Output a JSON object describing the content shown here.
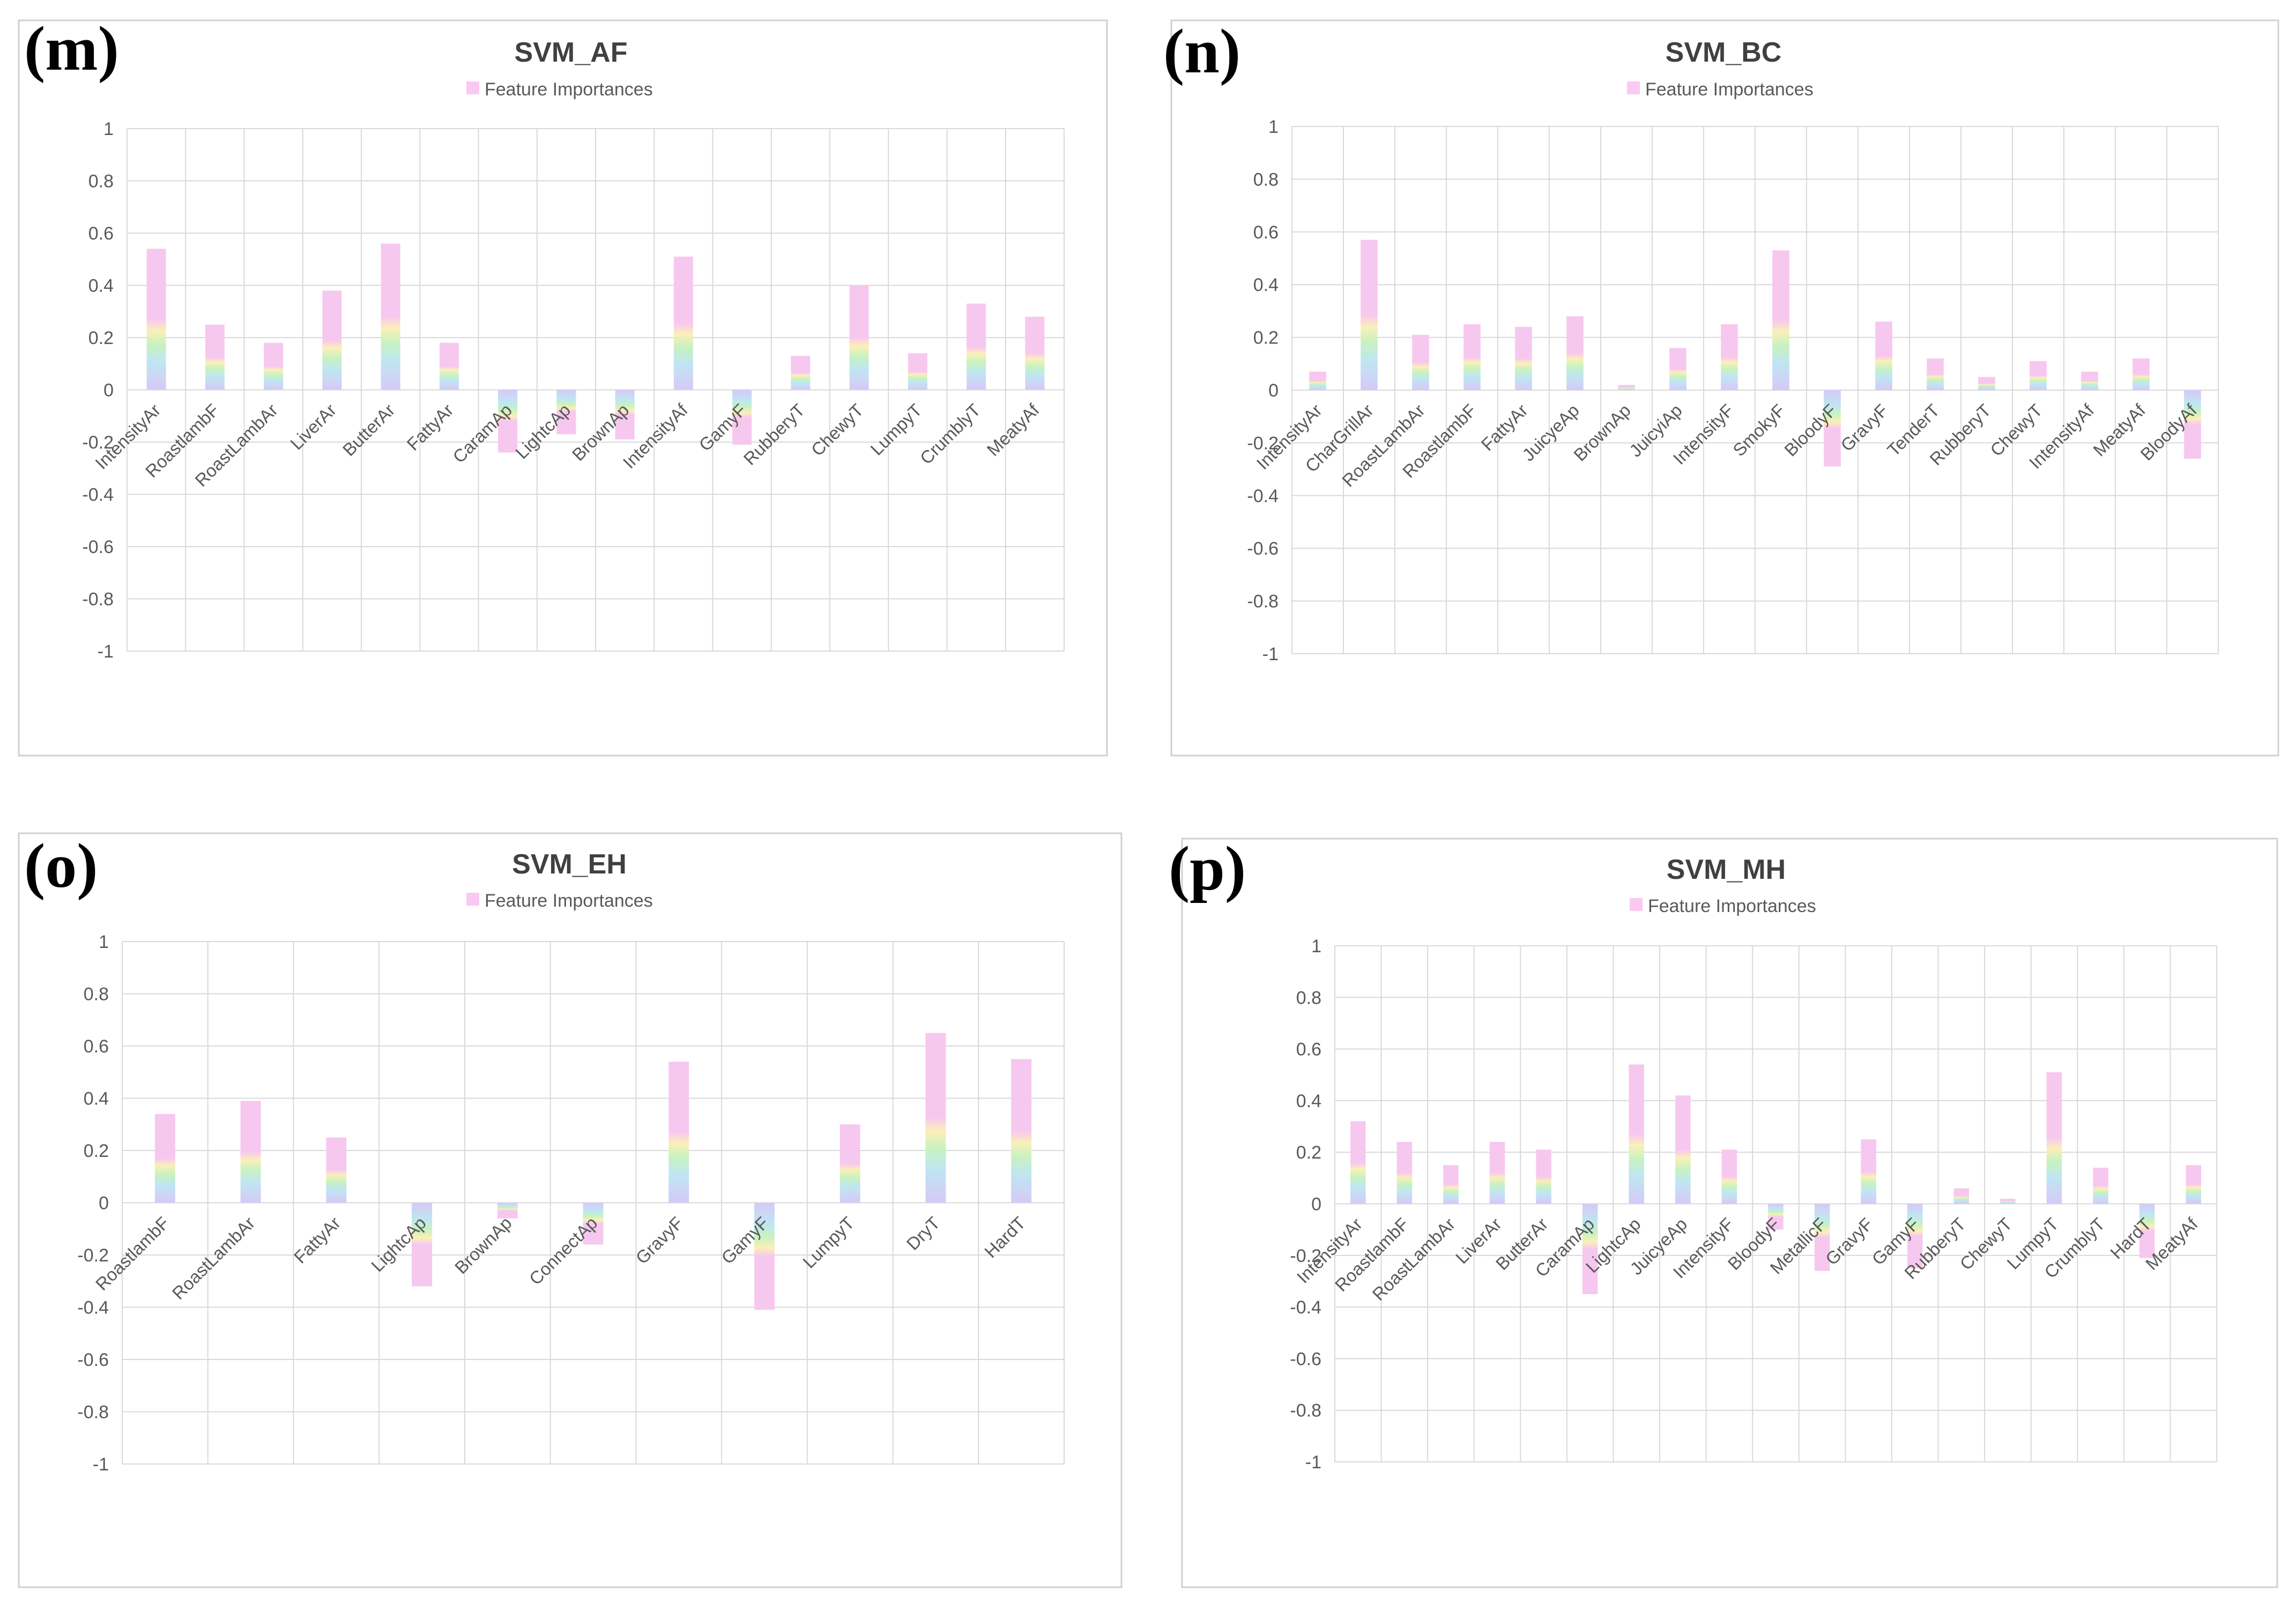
{
  "colors": {
    "bar_top": "#f9c9f1",
    "bar_stops": [
      "#f7c8ef",
      "#fbefb8",
      "#c8f2c0",
      "#bfe6f2",
      "#d6c9f7"
    ],
    "grid": "#d9d9d9",
    "frame": "#d0d0d0",
    "text": "#595959",
    "title": "#404040",
    "letter": "#000000"
  },
  "legend_label": "Feature Importances",
  "chart_data": [
    {
      "panel": "(m)",
      "type": "bar",
      "title": "SVM_AF",
      "legend": "Feature Importances",
      "ylim": [
        -1,
        1
      ],
      "yticks": [
        1,
        0.8,
        0.6,
        0.4,
        0.2,
        0,
        -0.2,
        -0.4,
        -0.6,
        -0.8,
        -1
      ],
      "ytick_labels": [
        "1",
        "0.8",
        "0.6",
        "0.4",
        "0.2",
        "0",
        "-0.2",
        "-0.4",
        "-0.6",
        "-0.8",
        "-1"
      ],
      "categories": [
        "IntensityAr",
        "RoastlambF",
        "RoastLambAr",
        "LiverAr",
        "ButterAr",
        "FattyAr",
        "CaramAp",
        "LightcAp",
        "BrownAp",
        "IntensityAf",
        "GamyF",
        "RubberyT",
        "ChewyT",
        "LumpyT",
        "CrumblyT",
        "MeatyAf"
      ],
      "values": [
        0.54,
        0.25,
        0.18,
        0.38,
        0.56,
        0.18,
        -0.24,
        -0.17,
        -0.19,
        0.51,
        -0.21,
        0.13,
        0.4,
        0.14,
        0.33,
        0.28
      ]
    },
    {
      "panel": "(n)",
      "type": "bar",
      "title": "SVM_BC",
      "legend": "Feature Importances",
      "ylim": [
        -1,
        1
      ],
      "yticks": [
        1,
        0.8,
        0.6,
        0.4,
        0.2,
        0,
        -0.2,
        -0.4,
        -0.6,
        -0.8,
        -1
      ],
      "ytick_labels": [
        "1",
        "0.8",
        "0.6",
        "0.4",
        "0.2",
        "0",
        "-0.2",
        "-0.4",
        "-0.6",
        "-0.8",
        "-1"
      ],
      "categories": [
        "IntensityAr",
        "CharGrillAr",
        "RoastLambAr",
        "RoastlambF",
        "FattyAr",
        "JuicyeAp",
        "BrownAp",
        "JuicyiAp",
        "IntensityF",
        "SmokyF",
        "BloodyF",
        "GravyF",
        "TenderT",
        "RubberyT",
        "ChewyT",
        "IntensityAf",
        "MeatyAf",
        "BloodyAf"
      ],
      "values": [
        0.07,
        0.57,
        0.21,
        0.25,
        0.24,
        0.28,
        0.02,
        0.16,
        0.25,
        0.53,
        -0.29,
        0.26,
        0.12,
        0.05,
        0.11,
        0.07,
        0.12,
        -0.26
      ]
    },
    {
      "panel": "(o)",
      "type": "bar",
      "title": "SVM_EH",
      "legend": "Feature Importances",
      "ylim": [
        -1,
        1
      ],
      "yticks": [
        1,
        0.8,
        0.6,
        0.4,
        0.2,
        0,
        -0.2,
        -0.4,
        -0.6,
        -0.8,
        -1
      ],
      "ytick_labels": [
        "1",
        "0.8",
        "0.6",
        "0.4",
        "0.2",
        "0",
        "-0.2",
        "-0.4",
        "-0.6",
        "-0.8",
        "-1"
      ],
      "categories": [
        "RoastlambF",
        "RoastLambAr",
        "FattyAr",
        "LightcAp",
        "BrownAp",
        "ConnectAp",
        "GravyF",
        "GamyF",
        "LumpyT",
        "DryT",
        "HardT"
      ],
      "values": [
        0.34,
        0.39,
        0.25,
        -0.32,
        -0.06,
        -0.16,
        0.54,
        -0.41,
        0.3,
        0.65,
        0.55
      ]
    },
    {
      "panel": "(p)",
      "type": "bar",
      "title": "SVM_MH",
      "legend": "Feature Importances",
      "ylim": [
        -1,
        1
      ],
      "yticks": [
        1,
        0.8,
        0.6,
        0.4,
        0.2,
        0,
        -0.2,
        -0.4,
        -0.6,
        -0.8,
        -1
      ],
      "ytick_labels": [
        "1",
        "0.8",
        "0.6",
        "0.4",
        "0.2",
        "0",
        "-0.2",
        "-0.4",
        "-0.6",
        "-0.8",
        "-1"
      ],
      "categories": [
        "IntensityAr",
        "RoastlambF",
        "RoastLambAr",
        "LiverAr",
        "ButterAr",
        "CaramAp",
        "LightcAp",
        "JuicyeAp",
        "IntensityF",
        "BloodyF",
        "MetallicF",
        "GravyF",
        "GamyF",
        "RubberyT",
        "ChewyT",
        "LumpyT",
        "CrumblyT",
        "HardT",
        "MeatyAf"
      ],
      "values": [
        0.32,
        0.24,
        0.15,
        0.24,
        0.21,
        -0.35,
        0.54,
        0.42,
        0.21,
        -0.1,
        -0.26,
        0.25,
        -0.25,
        0.06,
        0.02,
        0.51,
        0.14,
        -0.21,
        0.15
      ]
    }
  ]
}
